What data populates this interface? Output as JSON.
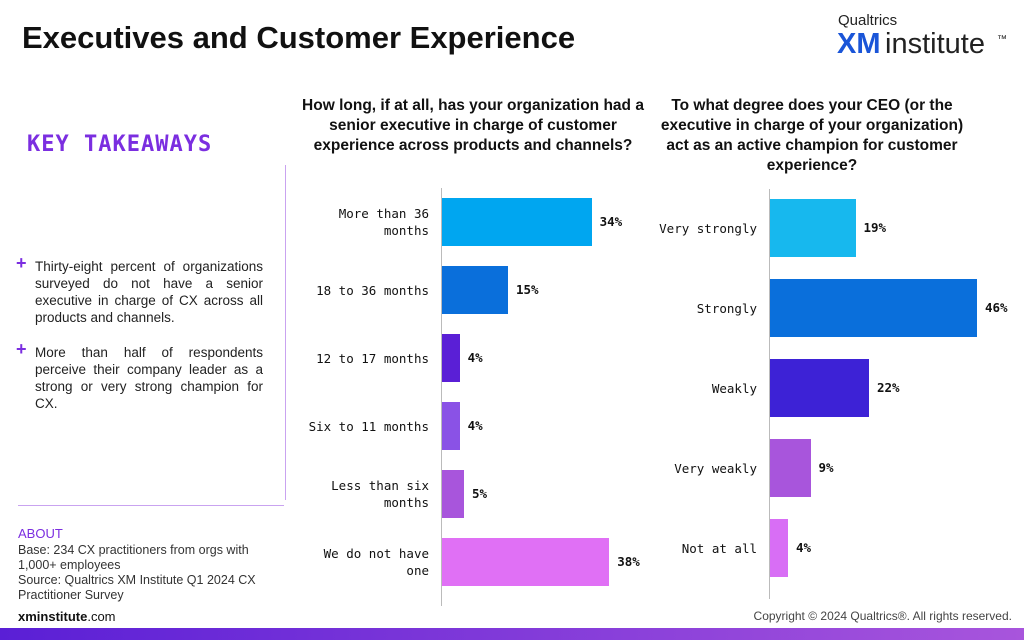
{
  "header": {
    "title": "Executives and Customer Experience"
  },
  "logo": {
    "brand": "Qualtrics",
    "xm": "XM",
    "name": "institute",
    "mark": "™"
  },
  "takeaways": {
    "heading": "KEY TAKEAWAYS",
    "items": [
      "Thirty-eight percent of organizations surveyed do not have a senior executive in charge of CX across all products and channels.",
      "More than half of respondents perceive their company leader as a strong or very strong champion for CX."
    ]
  },
  "about": {
    "heading": "ABOUT",
    "base": "Base: 234 CX practitioners from orgs with 1,000+ employees",
    "source": "Source: Qualtrics XM Institute Q1 2024 CX Practitioner Survey"
  },
  "footer": {
    "site_bold": "xminstitute",
    "site_rest": ".com",
    "copyright": "Copyright © 2024 Qualtrics®. All rights reserved."
  },
  "chart_data": [
    {
      "type": "bar",
      "title": "How long, if at all, has your organization had a senior executive in charge of customer experience across products and channels?",
      "categories": [
        "More than 36 months",
        "18 to 36 months",
        "12 to 17 months",
        "Six to 11 months",
        "Less than six months",
        "We do not have one"
      ],
      "values": [
        34,
        15,
        4,
        4,
        5,
        38
      ],
      "value_labels": [
        "34%",
        "15%",
        "4%",
        "4%",
        "5%",
        "38%"
      ],
      "colors": [
        "#00a6f0",
        "#0a6fdb",
        "#5a1fd6",
        "#8a52e6",
        "#a855dc",
        "#e070f5"
      ]
    },
    {
      "type": "bar",
      "title": "To what degree does your CEO (or the executive in charge of your organization) act as an active champion for customer experience?",
      "categories": [
        "Very strongly",
        "Strongly",
        "Weakly",
        "Very weakly",
        "Not at all"
      ],
      "values": [
        19,
        46,
        22,
        9,
        4
      ],
      "value_labels": [
        "19%",
        "46%",
        "22%",
        "9%",
        "4%"
      ],
      "colors": [
        "#17b8ee",
        "#0a6fdb",
        "#3d22d6",
        "#a855dc",
        "#d86ef5"
      ]
    }
  ]
}
